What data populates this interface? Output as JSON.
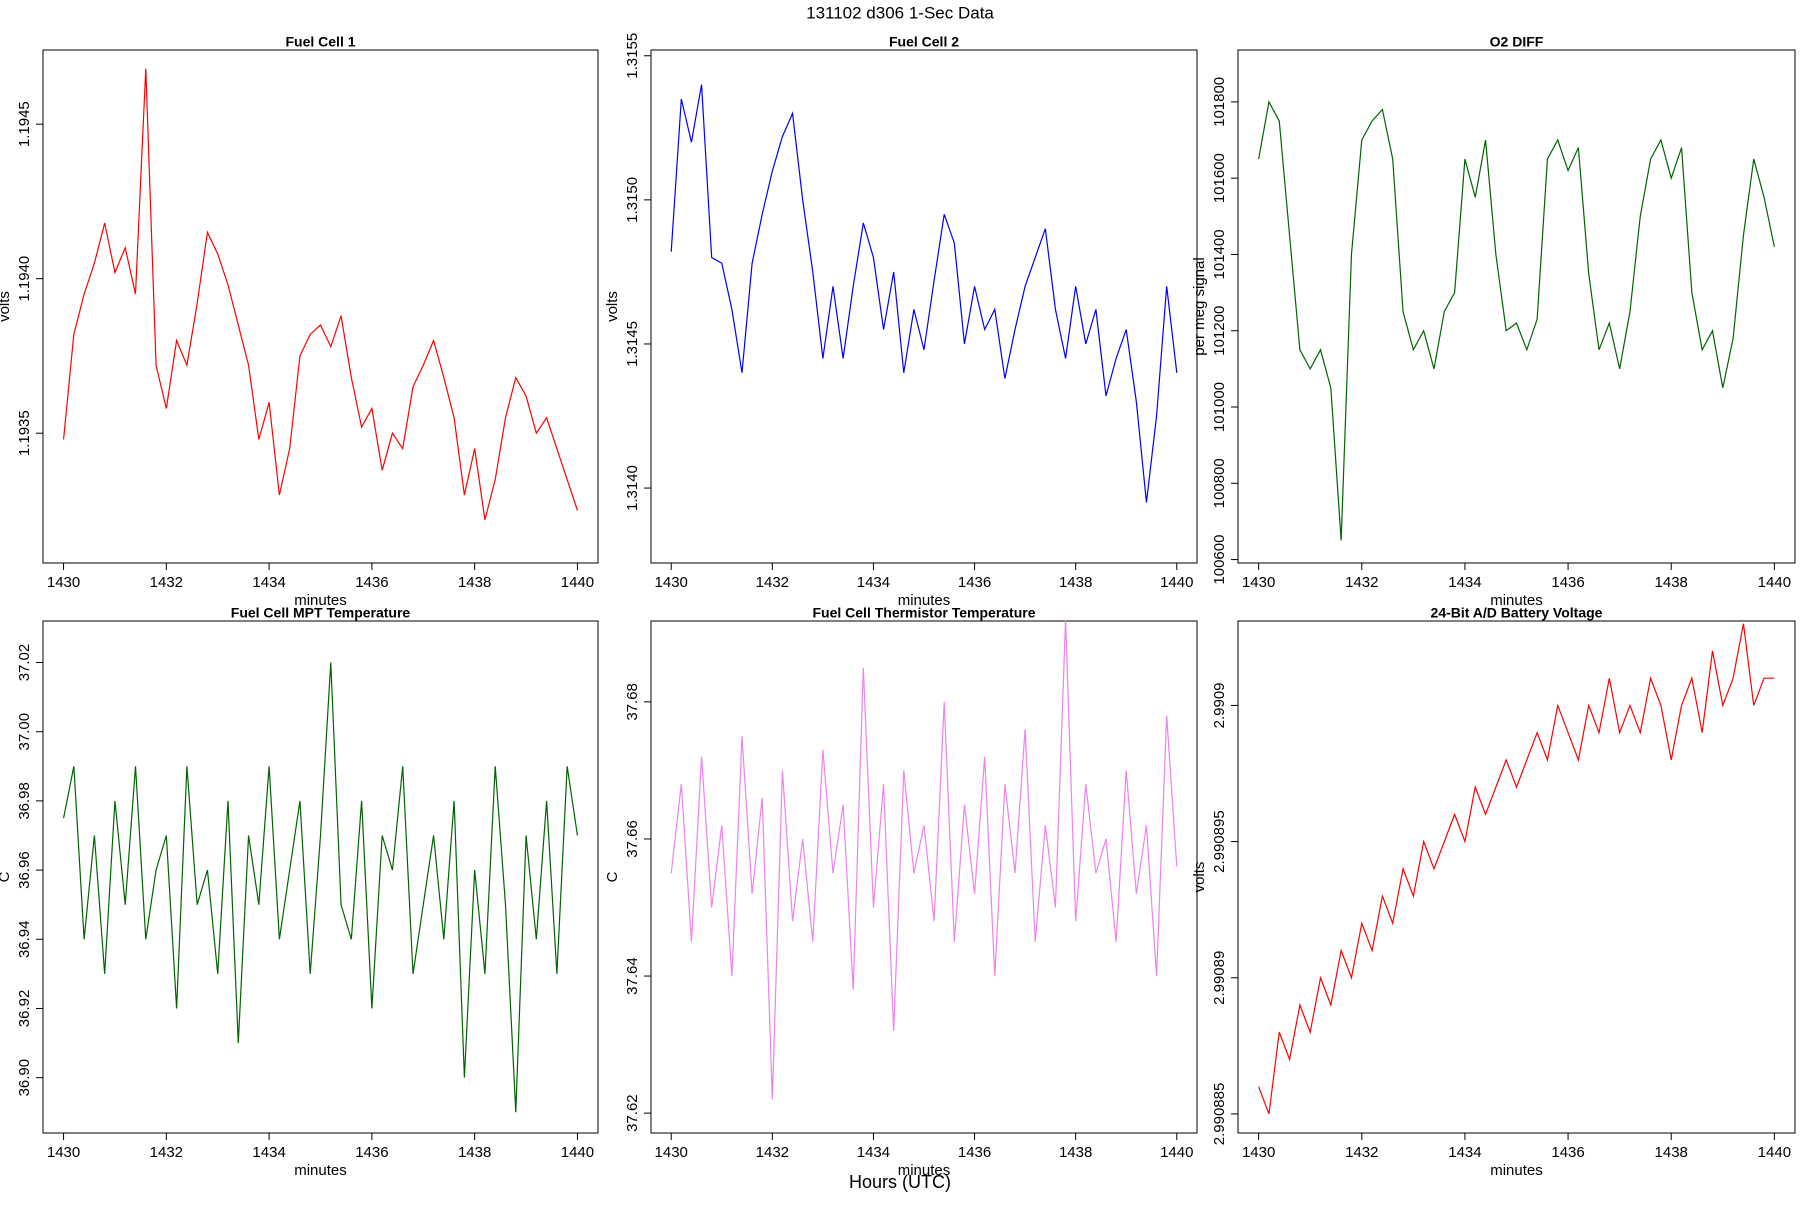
{
  "page": {
    "title": "131102   d306   1-Sec Data",
    "xlabel": "Hours (UTC)"
  },
  "chart_data": [
    {
      "type": "line",
      "title": "Fuel Cell 1",
      "xlabel": "minutes",
      "ylabel": "volts",
      "x": [
        1430,
        1430.2,
        1430.4,
        1430.6,
        1430.8,
        1431,
        1431.2,
        1431.4,
        1431.6,
        1431.8,
        1432,
        1432.2,
        1432.4,
        1432.6,
        1432.8,
        1433,
        1433.2,
        1433.4,
        1433.6,
        1433.8,
        1434,
        1434.2,
        1434.4,
        1434.6,
        1434.8,
        1435,
        1435.2,
        1435.4,
        1435.6,
        1435.8,
        1436,
        1436.2,
        1436.4,
        1436.6,
        1436.8,
        1437,
        1437.2,
        1437.4,
        1437.6,
        1437.8,
        1438,
        1438.2,
        1438.4,
        1438.6,
        1438.8,
        1439,
        1439.2,
        1439.4,
        1439.6,
        1439.8,
        1440
      ],
      "series": [
        {
          "name": "Fuel Cell 1",
          "color": "#ff0000",
          "values": [
            1.19348,
            1.19382,
            1.19395,
            1.19405,
            1.19418,
            1.19402,
            1.1941,
            1.19395,
            1.19468,
            1.19372,
            1.19358,
            1.1938,
            1.19372,
            1.19392,
            1.19415,
            1.19408,
            1.19398,
            1.19385,
            1.19372,
            1.19348,
            1.1936,
            1.1933,
            1.19345,
            1.19375,
            1.19382,
            1.19385,
            1.19378,
            1.19388,
            1.19368,
            1.19352,
            1.19358,
            1.19338,
            1.1935,
            1.19345,
            1.19365,
            1.19372,
            1.1938,
            1.19368,
            1.19355,
            1.1933,
            1.19345,
            1.19322,
            1.19335,
            1.19355,
            1.19368,
            1.19362,
            1.1935,
            1.19355,
            1.19345,
            1.19335,
            1.19325
          ]
        }
      ],
      "xlim": [
        1429.6,
        1440.4
      ],
      "xticks": [
        1430,
        1432,
        1434,
        1436,
        1438,
        1440
      ],
      "ylim": [
        1.19308,
        1.19474
      ],
      "yticks": [
        {
          "value": 1.1935,
          "label": "1.1935"
        },
        {
          "value": 1.194,
          "label": "1.1940"
        },
        {
          "value": 1.1945,
          "label": "1.1945"
        }
      ]
    },
    {
      "type": "line",
      "title": "Fuel Cell 2",
      "xlabel": "minutes",
      "ylabel": "volts",
      "x": [
        1430,
        1430.2,
        1430.4,
        1430.6,
        1430.8,
        1431,
        1431.2,
        1431.4,
        1431.6,
        1431.8,
        1432,
        1432.2,
        1432.4,
        1432.6,
        1432.8,
        1433,
        1433.2,
        1433.4,
        1433.6,
        1433.8,
        1434,
        1434.2,
        1434.4,
        1434.6,
        1434.8,
        1435,
        1435.2,
        1435.4,
        1435.6,
        1435.8,
        1436,
        1436.2,
        1436.4,
        1436.6,
        1436.8,
        1437,
        1437.2,
        1437.4,
        1437.6,
        1437.8,
        1438,
        1438.2,
        1438.4,
        1438.6,
        1438.8,
        1439,
        1439.2,
        1439.4,
        1439.6,
        1439.8,
        1440
      ],
      "series": [
        {
          "name": "Fuel Cell 2",
          "color": "#0000ff",
          "values": [
            1.31482,
            1.31535,
            1.3152,
            1.3154,
            1.3148,
            1.31478,
            1.31462,
            1.3144,
            1.31478,
            1.31495,
            1.3151,
            1.31522,
            1.3153,
            1.315,
            1.31475,
            1.31445,
            1.3147,
            1.31445,
            1.3147,
            1.31492,
            1.3148,
            1.31455,
            1.31475,
            1.3144,
            1.31462,
            1.31448,
            1.31472,
            1.31495,
            1.31485,
            1.3145,
            1.3147,
            1.31455,
            1.31462,
            1.31438,
            1.31455,
            1.3147,
            1.3148,
            1.3149,
            1.31462,
            1.31445,
            1.3147,
            1.3145,
            1.31462,
            1.31432,
            1.31445,
            1.31455,
            1.3143,
            1.31395,
            1.31425,
            1.3147,
            1.3144
          ]
        }
      ],
      "xlim": [
        1429.6,
        1440.4
      ],
      "xticks": [
        1430,
        1432,
        1434,
        1436,
        1438,
        1440
      ],
      "ylim": [
        1.31374,
        1.31552
      ],
      "yticks": [
        {
          "value": 1.314,
          "label": "1.3140"
        },
        {
          "value": 1.3145,
          "label": "1.3145"
        },
        {
          "value": 1.315,
          "label": "1.3150"
        },
        {
          "value": 1.3155,
          "label": "1.3155"
        }
      ]
    },
    {
      "type": "line",
      "title": "O2 DIFF",
      "xlabel": "minutes",
      "ylabel": "per meg signal",
      "x": [
        1430,
        1430.2,
        1430.4,
        1430.6,
        1430.8,
        1431,
        1431.2,
        1431.4,
        1431.6,
        1431.8,
        1432,
        1432.2,
        1432.4,
        1432.6,
        1432.8,
        1433,
        1433.2,
        1433.4,
        1433.6,
        1433.8,
        1434,
        1434.2,
        1434.4,
        1434.6,
        1434.8,
        1435,
        1435.2,
        1435.4,
        1435.6,
        1435.8,
        1436,
        1436.2,
        1436.4,
        1436.6,
        1436.8,
        1437,
        1437.2,
        1437.4,
        1437.6,
        1437.8,
        1438,
        1438.2,
        1438.4,
        1438.6,
        1438.8,
        1439,
        1439.2,
        1439.4,
        1439.6,
        1439.8,
        1440
      ],
      "series": [
        {
          "name": "O2 DIFF",
          "color": "#006400",
          "values": [
            101650,
            101800,
            101750,
            101450,
            101150,
            101100,
            101150,
            101050,
            100650,
            101400,
            101700,
            101750,
            101780,
            101650,
            101250,
            101150,
            101200,
            101100,
            101250,
            101300,
            101650,
            101550,
            101700,
            101400,
            101200,
            101220,
            101150,
            101230,
            101650,
            101700,
            101620,
            101680,
            101350,
            101150,
            101220,
            101100,
            101250,
            101500,
            101650,
            101700,
            101600,
            101680,
            101300,
            101150,
            101200,
            101050,
            101180,
            101450,
            101650,
            101550,
            101420
          ]
        }
      ],
      "xlim": [
        1429.6,
        1440.4
      ],
      "xticks": [
        1430,
        1432,
        1434,
        1436,
        1438,
        1440
      ],
      "ylim": [
        100591,
        101936
      ],
      "yticks": [
        100600,
        100800,
        101000,
        101200,
        101400,
        101600,
        101800
      ]
    },
    {
      "type": "line",
      "title": "Fuel Cell MPT Temperature",
      "xlabel": "minutes",
      "ylabel": "C",
      "x": [
        1430,
        1430.2,
        1430.4,
        1430.6,
        1430.8,
        1431,
        1431.2,
        1431.4,
        1431.6,
        1431.8,
        1432,
        1432.2,
        1432.4,
        1432.6,
        1432.8,
        1433,
        1433.2,
        1433.4,
        1433.6,
        1433.8,
        1434,
        1434.2,
        1434.4,
        1434.6,
        1434.8,
        1435,
        1435.2,
        1435.4,
        1435.6,
        1435.8,
        1436,
        1436.2,
        1436.4,
        1436.6,
        1436.8,
        1437,
        1437.2,
        1437.4,
        1437.6,
        1437.8,
        1438,
        1438.2,
        1438.4,
        1438.6,
        1438.8,
        1439,
        1439.2,
        1439.4,
        1439.6,
        1439.8,
        1440
      ],
      "series": [
        {
          "name": "Fuel Cell MPT Temperature",
          "color": "#006400",
          "values": [
            36.975,
            36.99,
            36.94,
            36.97,
            36.93,
            36.98,
            36.95,
            36.99,
            36.94,
            36.96,
            36.97,
            36.92,
            36.99,
            36.95,
            36.96,
            36.93,
            36.98,
            36.91,
            36.97,
            36.95,
            36.99,
            36.94,
            36.96,
            36.98,
            36.93,
            36.97,
            37.02,
            36.95,
            36.94,
            36.98,
            36.92,
            36.97,
            36.96,
            36.99,
            36.93,
            36.95,
            36.97,
            36.94,
            36.98,
            36.9,
            36.96,
            36.93,
            36.99,
            36.95,
            36.89,
            36.97,
            36.94,
            36.98,
            36.93,
            36.99,
            36.97
          ]
        }
      ],
      "xlim": [
        1429.6,
        1440.4
      ],
      "xticks": [
        1430,
        1432,
        1434,
        1436,
        1438,
        1440
      ],
      "ylim": [
        36.884,
        37.032
      ],
      "yticks": [
        {
          "value": 36.9,
          "label": "36.90"
        },
        36.92,
        36.94,
        36.96,
        36.98,
        {
          "value": 37,
          "label": "37.00"
        },
        37.02
      ]
    },
    {
      "type": "line",
      "title": "Fuel Cell Thermistor Temperature",
      "xlabel": "minutes",
      "ylabel": "C",
      "x": [
        1430,
        1430.2,
        1430.4,
        1430.6,
        1430.8,
        1431,
        1431.2,
        1431.4,
        1431.6,
        1431.8,
        1432,
        1432.2,
        1432.4,
        1432.6,
        1432.8,
        1433,
        1433.2,
        1433.4,
        1433.6,
        1433.8,
        1434,
        1434.2,
        1434.4,
        1434.6,
        1434.8,
        1435,
        1435.2,
        1435.4,
        1435.6,
        1435.8,
        1436,
        1436.2,
        1436.4,
        1436.6,
        1436.8,
        1437,
        1437.2,
        1437.4,
        1437.6,
        1437.8,
        1438,
        1438.2,
        1438.4,
        1438.6,
        1438.8,
        1439,
        1439.2,
        1439.4,
        1439.6,
        1439.8,
        1440
      ],
      "series": [
        {
          "name": "Fuel Cell Thermistor Temperature",
          "color": "#ee82ee",
          "values": [
            37.655,
            37.668,
            37.645,
            37.672,
            37.65,
            37.662,
            37.64,
            37.675,
            37.652,
            37.666,
            37.622,
            37.67,
            37.648,
            37.66,
            37.645,
            37.673,
            37.655,
            37.665,
            37.638,
            37.685,
            37.65,
            37.668,
            37.632,
            37.67,
            37.655,
            37.662,
            37.648,
            37.68,
            37.645,
            37.665,
            37.652,
            37.672,
            37.64,
            37.668,
            37.655,
            37.676,
            37.645,
            37.662,
            37.65,
            37.692,
            37.648,
            37.668,
            37.655,
            37.66,
            37.645,
            37.67,
            37.652,
            37.662,
            37.64,
            37.678,
            37.656
          ]
        }
      ],
      "xlim": [
        1429.6,
        1440.4
      ],
      "xticks": [
        1430,
        1432,
        1434,
        1436,
        1438,
        1440
      ],
      "ylim": [
        37.6171,
        37.6918
      ],
      "yticks": [
        37.62,
        37.64,
        37.66,
        37.68
      ]
    },
    {
      "type": "line",
      "title": "24-Bit A/D Battery Voltage",
      "xlabel": "minutes",
      "ylabel": "volts",
      "x": [
        1430,
        1430.2,
        1430.4,
        1430.6,
        1430.8,
        1431,
        1431.2,
        1431.4,
        1431.6,
        1431.8,
        1432,
        1432.2,
        1432.4,
        1432.6,
        1432.8,
        1433,
        1433.2,
        1433.4,
        1433.6,
        1433.8,
        1434,
        1434.2,
        1434.4,
        1434.6,
        1434.8,
        1435,
        1435.2,
        1435.4,
        1435.6,
        1435.8,
        1436,
        1436.2,
        1436.4,
        1436.6,
        1436.8,
        1437,
        1437.2,
        1437.4,
        1437.6,
        1437.8,
        1438,
        1438.2,
        1438.4,
        1438.6,
        1438.8,
        1439,
        1439.2,
        1439.4,
        1439.6,
        1439.8,
        1440
      ],
      "series": [
        {
          "name": "24-Bit A/D Battery Voltage",
          "color": "#ff0000",
          "values": [
            2.990886,
            2.990885,
            2.990888,
            2.990887,
            2.990889,
            2.990888,
            2.99089,
            2.990889,
            2.990891,
            2.99089,
            2.990892,
            2.990891,
            2.990893,
            2.990892,
            2.990894,
            2.990893,
            2.990895,
            2.990894,
            2.990895,
            2.990896,
            2.990895,
            2.990897,
            2.990896,
            2.990897,
            2.990898,
            2.990897,
            2.990898,
            2.990899,
            2.990898,
            2.9909,
            2.990899,
            2.990898,
            2.9909,
            2.990899,
            2.990901,
            2.990899,
            2.9909,
            2.990899,
            2.990901,
            2.9909,
            2.990898,
            2.9909,
            2.990901,
            2.990899,
            2.990902,
            2.9909,
            2.990901,
            2.990903,
            2.9909,
            2.990901,
            2.990901
          ]
        }
      ],
      "xlim": [
        1429.6,
        1440.4
      ],
      "xticks": [
        1430,
        1432,
        1434,
        1436,
        1438,
        1440
      ],
      "ylim": [
        2.9908843,
        2.9909031
      ],
      "yticks": [
        2.990885,
        2.99089,
        2.990895,
        2.9909
      ]
    }
  ]
}
